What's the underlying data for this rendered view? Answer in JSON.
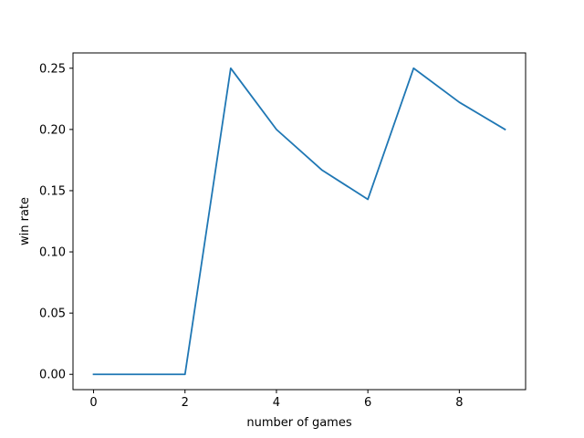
{
  "chart_data": {
    "type": "line",
    "title": "",
    "xlabel": "number of games",
    "ylabel": "win rate",
    "xlim": [
      -0.45,
      9.45
    ],
    "ylim": [
      -0.0125,
      0.2625
    ],
    "xticks": [
      0,
      2,
      4,
      6,
      8
    ],
    "yticks": [
      0.0,
      0.05,
      0.1,
      0.15,
      0.2,
      0.25
    ],
    "xtick_labels": [
      "0",
      "2",
      "4",
      "6",
      "8"
    ],
    "ytick_labels": [
      "0.00",
      "0.05",
      "0.10",
      "0.15",
      "0.20",
      "0.25"
    ],
    "grid": false,
    "legend": "none",
    "series": [
      {
        "color": "#1f77b4",
        "x": [
          0,
          1,
          2,
          3,
          4,
          5,
          6,
          7,
          8,
          9
        ],
        "y": [
          0.0,
          0.0,
          0.0,
          0.25,
          0.2,
          0.1667,
          0.1429,
          0.25,
          0.2222,
          0.2
        ]
      }
    ]
  }
}
